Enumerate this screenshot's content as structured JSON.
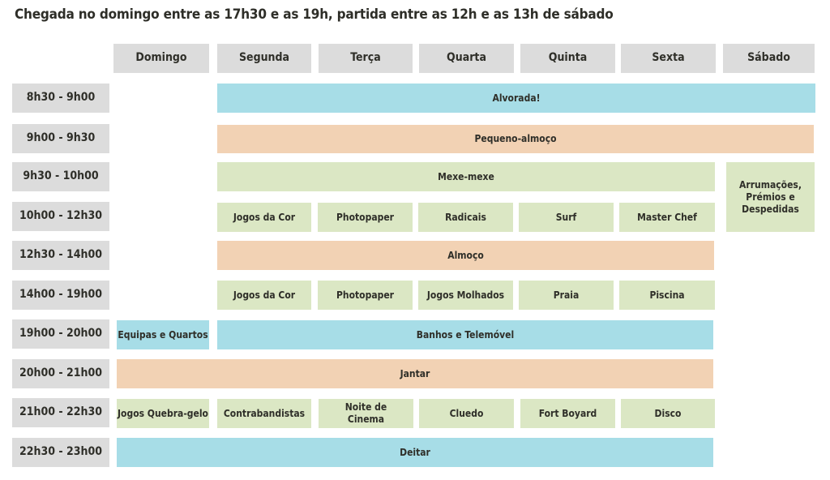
{
  "title": "Chegada no domingo entre as 17h30 e as 19h, partida entre as 12h e as 13h de sábado",
  "days": [
    "Domingo",
    "Segunda",
    "Terça",
    "Quarta",
    "Quinta",
    "Sexta",
    "Sábado"
  ],
  "times": [
    "8h30 - 9h00",
    "9h00 - 9h30",
    "9h30 - 10h00",
    "10h00 - 12h30",
    "12h30 - 14h00",
    "14h00 - 19h00",
    "19h00 - 20h00",
    "20h00 - 21h00",
    "21h00 - 22h30",
    "22h30 - 23h00"
  ],
  "activities": {
    "alvorada": "Alvorada!",
    "pequeno_almoco": "Pequeno-almoço",
    "mexe_mexe": "Mexe-mexe",
    "arrumacoes": "Arrumações, Prémios e Despedidas",
    "morning": [
      "Jogos da Cor",
      "Photopaper",
      "Radicais",
      "Surf",
      "Master Chef"
    ],
    "almoco": "Almoço",
    "afternoon": [
      "Jogos da Cor",
      "Photopaper",
      "Jogos Molhados",
      "Praia",
      "Piscina"
    ],
    "equipas": "Equipas e Quartos",
    "banhos": "Banhos e Telemóvel",
    "jantar": "Jantar",
    "evening": [
      "Jogos Quebra-gelo",
      "Contrabandistas",
      "Noite de Cinema",
      "Cluedo",
      "Fort Boyard",
      "Disco"
    ],
    "deitar": "Deitar"
  },
  "colors": {
    "header_gray": "#dcdcdc",
    "blue": "#a7dde7",
    "peach": "#f2d2b4",
    "green": "#dbe7c4"
  }
}
